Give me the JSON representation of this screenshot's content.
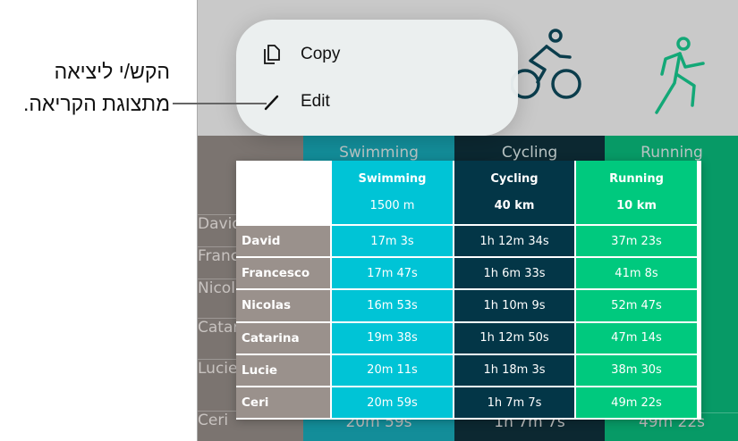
{
  "callout": {
    "line1": "הקש/י ליציאה",
    "line2": "מתצוגת הקריאה."
  },
  "context_menu": {
    "items": [
      {
        "label": "Copy",
        "icon": "copy-icon"
      },
      {
        "label": "Edit",
        "icon": "pencil-icon"
      }
    ]
  },
  "colors": {
    "swimming": "#00c4d6",
    "cycling": "#033647",
    "running": "#00c97e",
    "names": "#9a918c"
  },
  "table": {
    "columns": [
      {
        "title": "Swimming",
        "distance": "1500 m"
      },
      {
        "title": "Cycling",
        "distance": "40 km"
      },
      {
        "title": "Running",
        "distance": "10 km"
      }
    ],
    "rows": [
      {
        "name": "David",
        "times": [
          "17m 3s",
          "1h 12m 34s",
          "37m 23s"
        ]
      },
      {
        "name": "Francesco",
        "times": [
          "17m 47s",
          "1h 6m 33s",
          "41m 8s"
        ]
      },
      {
        "name": "Nicolas",
        "times": [
          "16m 53s",
          "1h 10m 9s",
          "52m 47s"
        ]
      },
      {
        "name": "Catarina",
        "times": [
          "19m 38s",
          "1h 12m 50s",
          "47m 14s"
        ]
      },
      {
        "name": "Lucie",
        "times": [
          "20m 11s",
          "1h 18m 3s",
          "38m 30s"
        ]
      },
      {
        "name": "Ceri",
        "times": [
          "20m 59s",
          "1h 7m 7s",
          "49m 22s"
        ]
      }
    ]
  },
  "background_table": {
    "columns": [
      "Swimming",
      "Cycling",
      "Running"
    ],
    "names": [
      "David",
      "Francesco",
      "Nicolas",
      "Catarina",
      "Lucie",
      "Ceri"
    ],
    "last_row": [
      "20m 59s",
      "1h 7m 7s",
      "49m 22s"
    ]
  }
}
